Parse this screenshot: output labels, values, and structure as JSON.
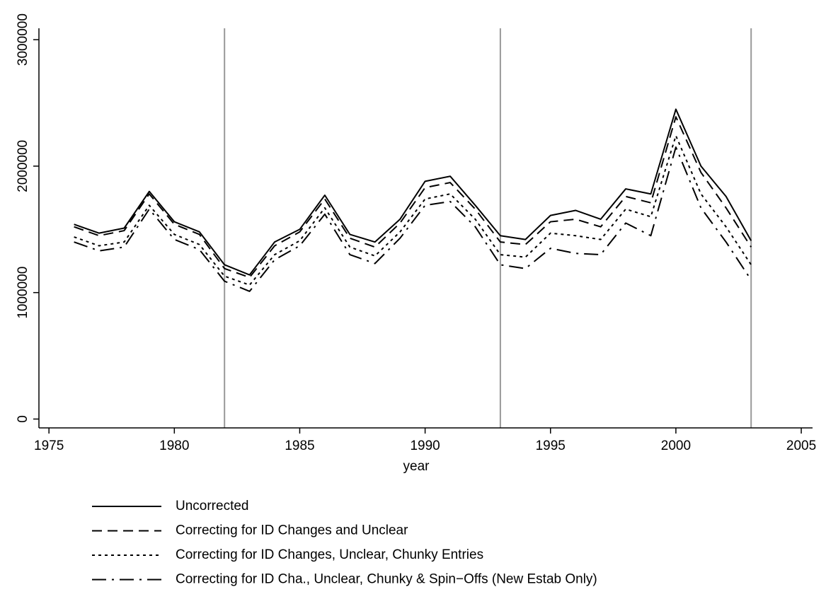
{
  "chart_data": {
    "type": "line",
    "x_label": "year",
    "x": [
      1976,
      1977,
      1978,
      1979,
      1980,
      1981,
      1982,
      1983,
      1984,
      1985,
      1986,
      1987,
      1988,
      1989,
      1990,
      1991,
      1992,
      1993,
      1994,
      1995,
      1996,
      1997,
      1998,
      1999,
      2000,
      2001,
      2002,
      2003
    ],
    "series": [
      {
        "name": "Uncorrected",
        "color": "#000000",
        "dash": "solid",
        "values": [
          1540000,
          1470000,
          1510000,
          1800000,
          1560000,
          1480000,
          1220000,
          1140000,
          1400000,
          1500000,
          1770000,
          1460000,
          1400000,
          1580000,
          1880000,
          1920000,
          1690000,
          1450000,
          1420000,
          1610000,
          1650000,
          1580000,
          1820000,
          1780000,
          2450000,
          2000000,
          1760000,
          1410000
        ]
      },
      {
        "name": "Correcting for ID Changes and Unclear",
        "color": "#000000",
        "dash": "dashed",
        "values": [
          1520000,
          1450000,
          1490000,
          1780000,
          1540000,
          1460000,
          1190000,
          1120000,
          1370000,
          1480000,
          1740000,
          1430000,
          1360000,
          1550000,
          1830000,
          1870000,
          1660000,
          1400000,
          1380000,
          1560000,
          1580000,
          1520000,
          1760000,
          1710000,
          2390000,
          1950000,
          1670000,
          1360000
        ]
      },
      {
        "name": "Correcting for ID Changes, Unclear, Chunky Entries",
        "color": "#000000",
        "dash": "dotted",
        "values": [
          1440000,
          1370000,
          1400000,
          1690000,
          1460000,
          1380000,
          1130000,
          1060000,
          1300000,
          1410000,
          1670000,
          1360000,
          1290000,
          1480000,
          1740000,
          1780000,
          1580000,
          1300000,
          1280000,
          1470000,
          1450000,
          1420000,
          1660000,
          1600000,
          2240000,
          1780000,
          1520000,
          1220000
        ]
      },
      {
        "name": "Correcting for ID Cha., Unclear, Chunky & Spin−Offs (New Estab Only)",
        "color": "#000000",
        "dash": "dashdot",
        "values": [
          1400000,
          1330000,
          1360000,
          1660000,
          1420000,
          1340000,
          1090000,
          1010000,
          1260000,
          1370000,
          1620000,
          1300000,
          1230000,
          1430000,
          1690000,
          1720000,
          1520000,
          1220000,
          1190000,
          1350000,
          1310000,
          1300000,
          1550000,
          1450000,
          2150000,
          1670000,
          1400000,
          1100000
        ]
      }
    ],
    "xlim": [
      1974.6,
      2005.45
    ],
    "ylim": [
      -70000,
      3090000
    ],
    "xticks": [
      1975,
      1980,
      1985,
      1990,
      1995,
      2000,
      2005
    ],
    "yticks": [
      0,
      1000000,
      2000000,
      3000000
    ],
    "vlines": [
      1982,
      1993,
      2003
    ],
    "vline_color": "#999999"
  }
}
